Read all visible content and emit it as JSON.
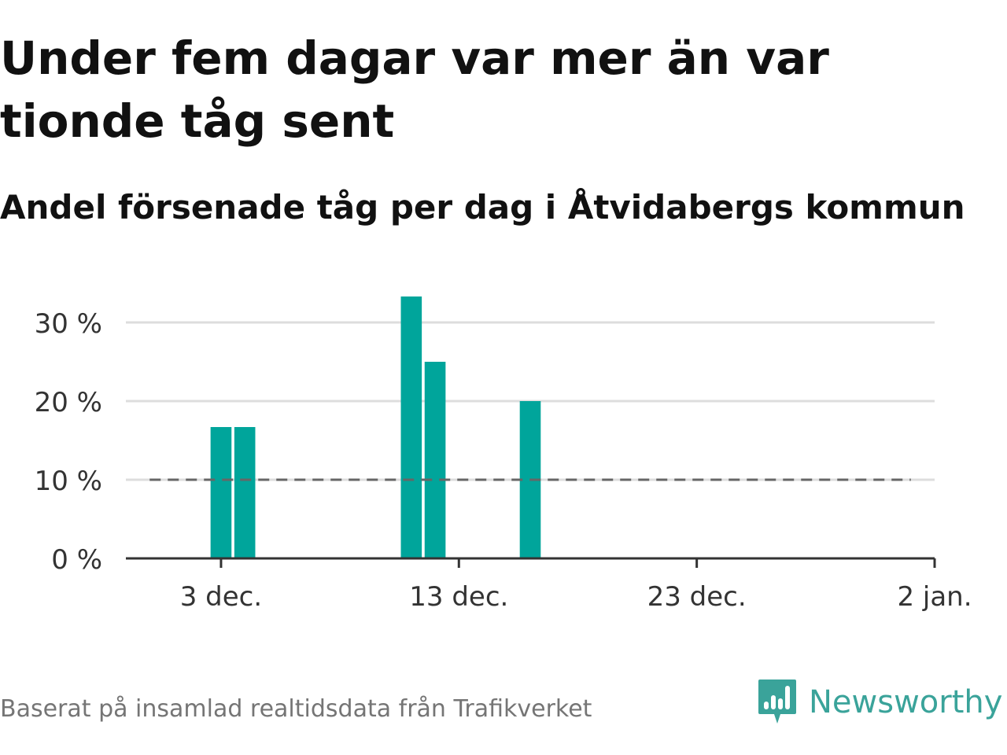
{
  "title": "Under fem dagar var mer än var tionde tåg sent",
  "subtitle": "Andel försenade tåg per dag i Åtvidabergs kommun",
  "footer": "Baserat på insamlad realtidsdata från Trafikverket",
  "brand": {
    "name": "Newsworthy",
    "icon": "newsworthy-logo-icon",
    "color": "#3aa39a"
  },
  "colors": {
    "bar": "#00a59b",
    "grid": "#dddddd",
    "axis": "#333333",
    "reference": "#666666"
  },
  "chart_data": {
    "type": "bar",
    "x_unit": "date",
    "x": [
      "2023-12-03",
      "2023-12-04",
      "2023-12-11",
      "2023-12-12",
      "2023-12-16"
    ],
    "values": [
      16.7,
      16.7,
      33.3,
      25.0,
      20.0
    ],
    "xlim": [
      "2023-11-29",
      "2024-01-02"
    ],
    "ylim": [
      0,
      35
    ],
    "yticks": [
      0,
      10,
      20,
      30
    ],
    "ytick_labels": [
      "0 %",
      "10 %",
      "20 %",
      "30 %"
    ],
    "xticks": [
      "2023-12-03",
      "2023-12-13",
      "2023-12-23",
      "2024-01-02"
    ],
    "xtick_labels": [
      "3 dec.",
      "13 dec.",
      "23 dec.",
      "2 jan."
    ],
    "reference_line": {
      "value": 10,
      "from": "2023-11-30",
      "to": "2024-01-01",
      "style": "dashed"
    },
    "grid": true,
    "xlabel": "",
    "ylabel": ""
  }
}
